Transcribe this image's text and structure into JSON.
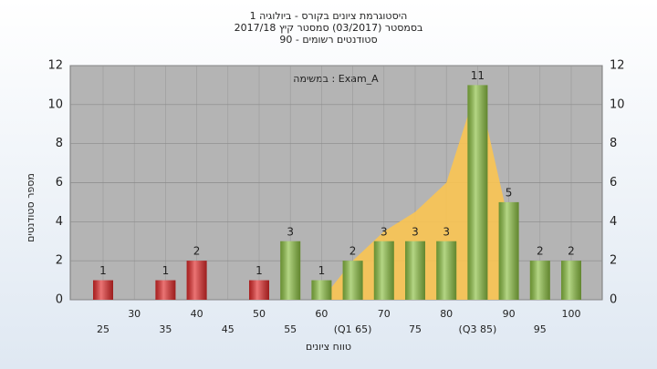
{
  "chart_data": {
    "type": "bar",
    "title": "היסטוגרמת ציונים בקורס - ביולוגיה 1",
    "subtitle": "בסמסטר (03/2017) סמסטר קיץ 2017/18",
    "subtitle2": "סטודנטים רשומים - 90",
    "annotation": "במשימה : Exam_A",
    "ylabel": "מספר סטודנטים",
    "xlabel": "טווח ציונים",
    "categories": [
      "25",
      "30",
      "35",
      "40",
      "45",
      "50",
      "55",
      "60",
      "(Q1 65)",
      "70",
      "75",
      "80",
      "(Q3 85)",
      "90",
      "95",
      "100"
    ],
    "values": [
      1,
      null,
      1,
      2,
      null,
      1,
      3,
      1,
      2,
      3,
      3,
      3,
      11,
      5,
      2,
      2
    ],
    "colors": [
      "#e02a2a",
      null,
      "#e02a2a",
      "#e02a2a",
      null,
      "#e02a2a",
      "#8cc043",
      "#8cc043",
      "#8cc043",
      "#8cc043",
      "#8cc043",
      "#8cc043",
      "#8cc043",
      "#8cc043",
      "#8cc043",
      "#8cc043"
    ],
    "area": {
      "color": "#f9c452",
      "values": [
        null,
        null,
        null,
        null,
        null,
        null,
        null,
        0,
        2,
        3.5,
        4.5,
        6,
        11,
        4,
        null,
        null
      ]
    },
    "ylim": [
      0,
      12
    ],
    "yticks": [
      0,
      2,
      4,
      6,
      8,
      10,
      12
    ],
    "grid": true
  }
}
